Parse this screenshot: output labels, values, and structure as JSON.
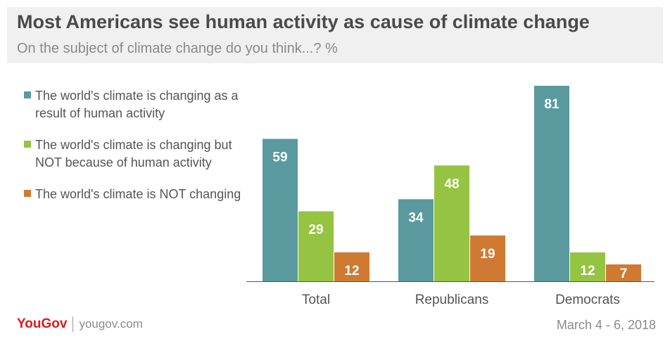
{
  "header": {
    "title": "Most Americans see human activity as cause of climate change",
    "subtitle": "On the subject of climate change do you think...? %"
  },
  "chart_data": {
    "type": "bar",
    "title": "Most Americans see human activity as cause of climate change",
    "subtitle": "On the subject of climate change do you think...? %",
    "xlabel": "",
    "ylabel": "",
    "categories": [
      "Total",
      "Republicans",
      "Democrats"
    ],
    "series": [
      {
        "name": "The world's climate is changing as a result of human activity",
        "color": "#5a9a9e",
        "values": [
          59,
          34,
          81
        ]
      },
      {
        "name": "The world's climate is changing but NOT because of human activity",
        "color": "#94c441",
        "values": [
          29,
          48,
          12
        ]
      },
      {
        "name": "The world's climate is NOT changing",
        "color": "#cf7a33",
        "values": [
          12,
          19,
          7
        ]
      }
    ],
    "ylim": [
      0,
      81
    ],
    "grid": false,
    "legend": "left"
  },
  "footer": {
    "logo": "YouGov",
    "site": "yougov.com",
    "date": "March 4 - 6, 2018"
  }
}
